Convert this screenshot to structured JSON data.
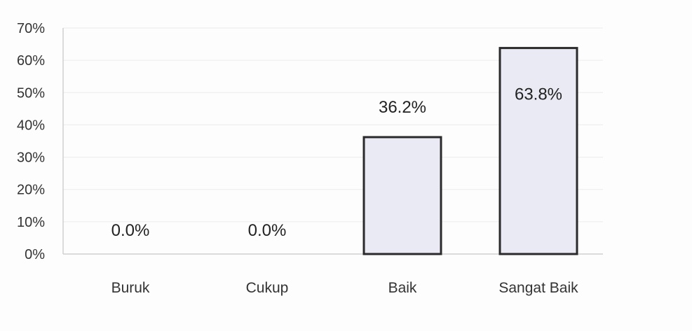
{
  "chart_data": {
    "type": "bar",
    "title": "",
    "xlabel": "",
    "ylabel": "",
    "categories": [
      "Buruk",
      "Cukup",
      "Baik",
      "Sangat Baik"
    ],
    "values": [
      0.0,
      0.0,
      36.2,
      63.8
    ],
    "data_labels": [
      "0.0%",
      "0.0%",
      "36.2%",
      "63.8%"
    ],
    "ylim": [
      0,
      70
    ],
    "y_ticks": [
      0,
      10,
      20,
      30,
      40,
      50,
      60,
      70
    ],
    "y_tick_labels": [
      "0%",
      "10%",
      "20%",
      "30%",
      "40%",
      "50%",
      "60%",
      "70%"
    ],
    "grid": true,
    "legend": "none",
    "colors": {
      "bar_fill": "#e9eaf3",
      "bar_outline": "#2a2a2a",
      "grid": "#ececec",
      "text": "#333333"
    }
  }
}
